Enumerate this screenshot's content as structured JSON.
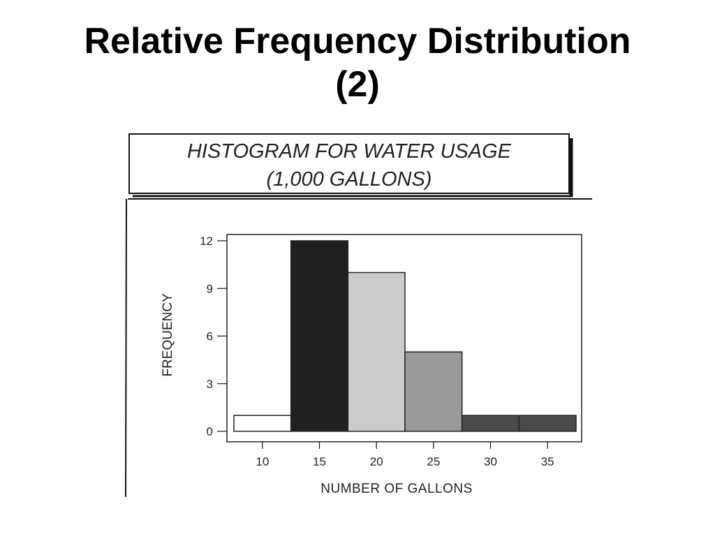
{
  "slide": {
    "title_line1": "Relative Frequency Distribution",
    "title_line2": "(2)"
  },
  "figure": {
    "caption_line1": "HISTOGRAM FOR WATER USAGE",
    "caption_line2": "(1,000 GALLONS)"
  },
  "chart_data": {
    "type": "bar",
    "title": "HISTOGRAM FOR WATER USAGE (1,000 GALLONS)",
    "xlabel": "NUMBER OF GALLONS",
    "ylabel": "FREQUENCY",
    "categories": [
      "10",
      "15",
      "20",
      "25",
      "30",
      "35"
    ],
    "values": [
      1,
      12,
      10,
      5,
      1,
      1
    ],
    "bin_centers": [
      10,
      15,
      20,
      25,
      30,
      35
    ],
    "bin_width": 5,
    "yticks": [
      "0",
      "3",
      "6",
      "9",
      "12"
    ],
    "ytick_values": [
      0,
      3,
      6,
      9,
      12
    ],
    "xticks": [
      "10",
      "15",
      "20",
      "25",
      "30",
      "35"
    ],
    "xtick_values": [
      10,
      15,
      20,
      25,
      30,
      35
    ],
    "xlim": [
      7.5,
      37.5
    ],
    "ylim": [
      0,
      12.2
    ],
    "grid": false,
    "bar_fills": [
      "#ffffff",
      "#202020",
      "#cccccc",
      "#9a9a9a",
      "#4a4a4a",
      "#4a4a4a"
    ],
    "colors": {
      "ink": "#111111",
      "bar_edge": "#222222"
    }
  }
}
